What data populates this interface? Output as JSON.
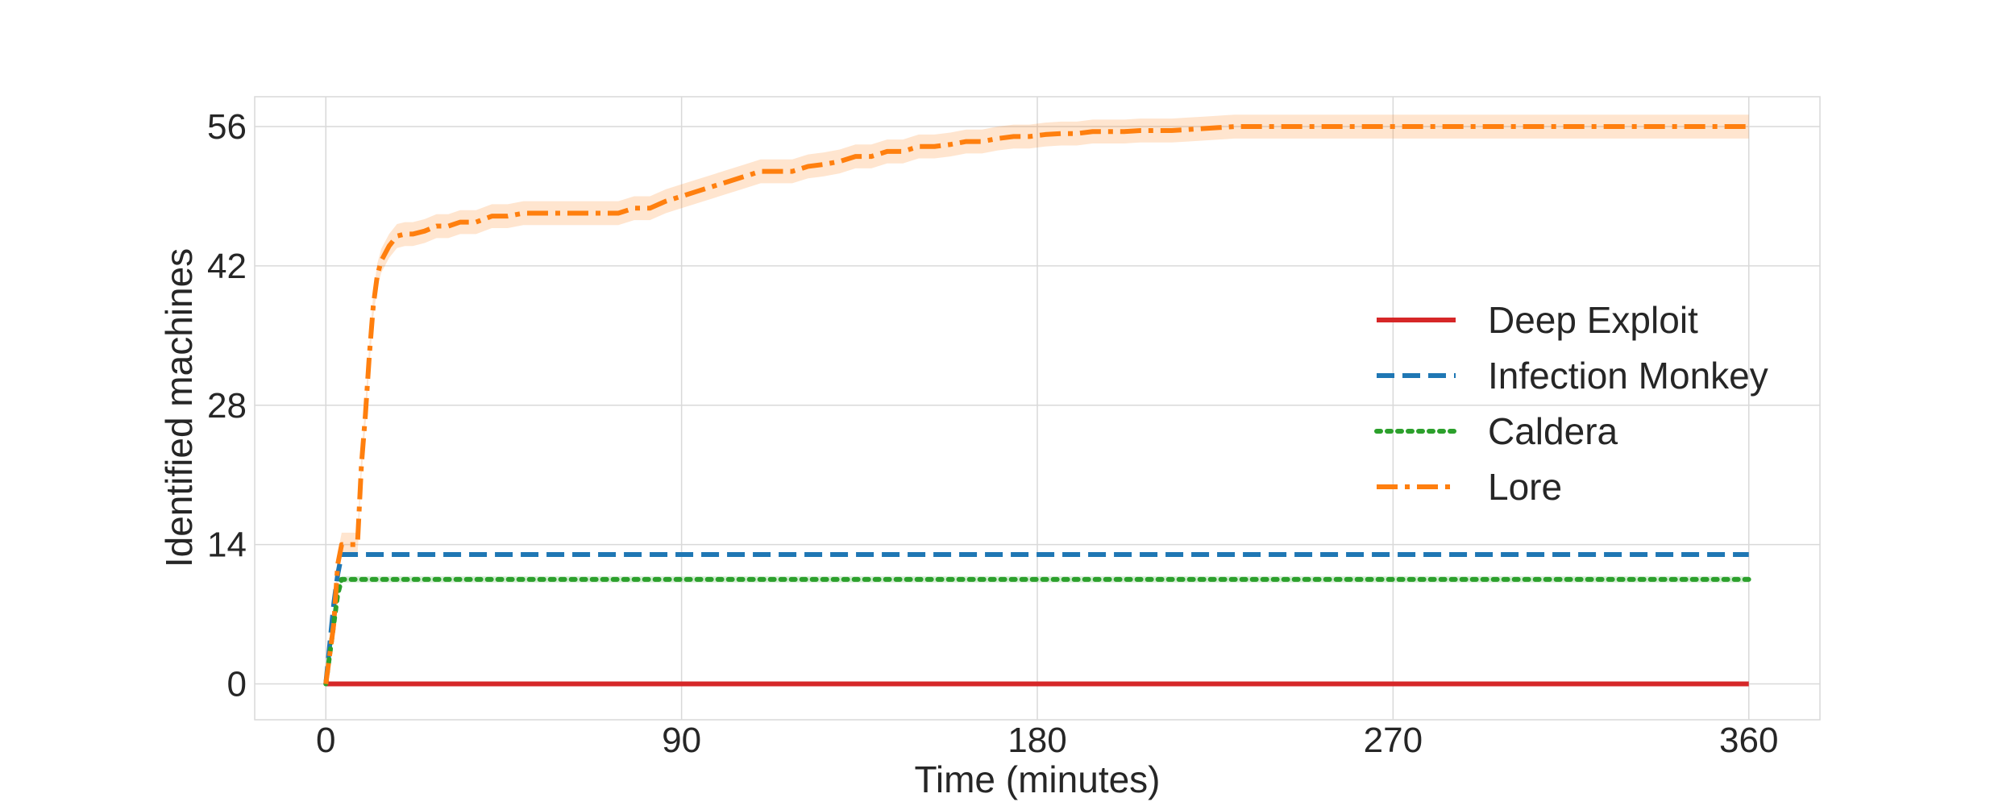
{
  "chart_data": {
    "type": "line",
    "xlabel": "Time (minutes)",
    "ylabel": "Identified machines",
    "xlim": [
      -18,
      378
    ],
    "ylim": [
      -3.6,
      59
    ],
    "xticks": [
      0,
      90,
      180,
      270,
      360
    ],
    "yticks": [
      0,
      14,
      28,
      42,
      56
    ],
    "grid": true,
    "legend_position": "center-right",
    "series": [
      {
        "name": "Deep Exploit",
        "color": "#d62728",
        "dash": "solid",
        "x": [
          0,
          360
        ],
        "y": [
          0,
          0
        ]
      },
      {
        "name": "Infection Monkey",
        "color": "#1f77b4",
        "dash": "dashed",
        "x": [
          0,
          1,
          2,
          3,
          4,
          360
        ],
        "y": [
          0,
          4,
          8,
          11,
          13,
          13
        ]
      },
      {
        "name": "Caldera",
        "color": "#2ca02c",
        "dash": "dotted",
        "x": [
          0,
          1,
          2,
          3,
          4,
          360
        ],
        "y": [
          0,
          3,
          6,
          9,
          10.5,
          10.5
        ],
        "band": 0.3
      },
      {
        "name": "Lore",
        "color": "#ff7f0e",
        "dash": "dashdot",
        "band": 1.2,
        "x": [
          0,
          2,
          3,
          4,
          7,
          8,
          9,
          10,
          11,
          12,
          13,
          14,
          16,
          18,
          20,
          22,
          25,
          28,
          31,
          34,
          38,
          42,
          46,
          50,
          54,
          58,
          62,
          66,
          70,
          74,
          78,
          82,
          86,
          90,
          94,
          98,
          102,
          106,
          110,
          114,
          118,
          122,
          126,
          130,
          134,
          138,
          142,
          146,
          150,
          154,
          158,
          162,
          166,
          170,
          174,
          178,
          182,
          186,
          190,
          194,
          198,
          202,
          206,
          210,
          214,
          218,
          222,
          226,
          230,
          360
        ],
        "y": [
          0,
          6,
          12,
          14,
          14,
          14,
          22,
          27,
          33,
          38,
          41,
          42.5,
          44,
          45,
          45.2,
          45.2,
          45.5,
          46,
          46,
          46.4,
          46.4,
          47,
          47,
          47.3,
          47.3,
          47.3,
          47.3,
          47.3,
          47.3,
          47.3,
          47.8,
          47.8,
          48.5,
          49,
          49.5,
          50,
          50.5,
          51,
          51.5,
          51.5,
          51.5,
          52,
          52.2,
          52.5,
          53,
          53,
          53.5,
          53.5,
          54,
          54,
          54.2,
          54.5,
          54.5,
          54.8,
          55,
          55,
          55.2,
          55.3,
          55.3,
          55.5,
          55.5,
          55.5,
          55.6,
          55.6,
          55.6,
          55.7,
          55.8,
          55.9,
          56,
          56
        ]
      }
    ]
  }
}
